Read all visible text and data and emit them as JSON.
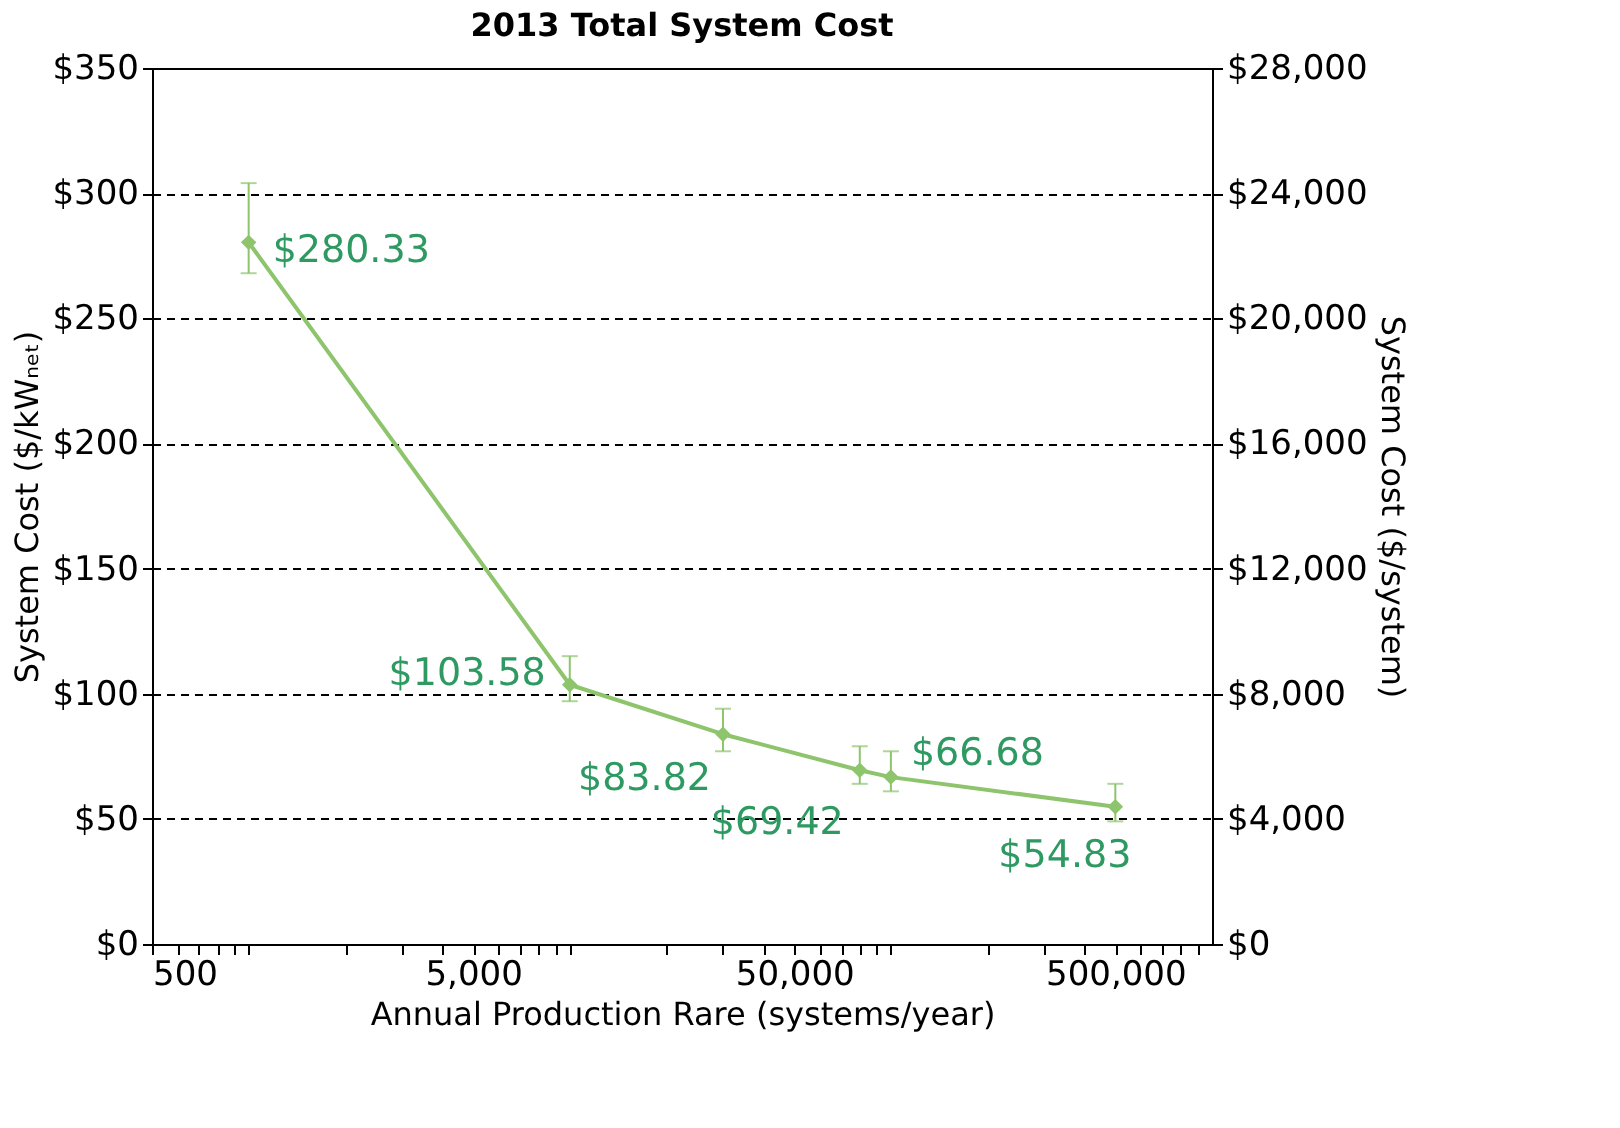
{
  "chart_data": {
    "type": "line",
    "title": "2013 Total System Cost",
    "xlabel": "Annual Production Rare (systems/year)",
    "ylabel": "System Cost ($/kWₙₑₜ)",
    "y2label": "System Cost ($/system)",
    "x": [
      1000,
      10000,
      30000,
      80000,
      100000,
      500000
    ],
    "series": [
      {
        "color": "#8dc46c",
        "values": [
          280.33,
          103.58,
          83.82,
          69.42,
          66.68,
          54.83
        ],
        "errors": [
          [
            268,
            304
          ],
          [
            97,
            115
          ],
          [
            77,
            94
          ],
          [
            64,
            79
          ],
          [
            61,
            77
          ],
          [
            49,
            64
          ]
        ],
        "value_labels": [
          "$280.33",
          "$103.58",
          "$83.82",
          "$69.42",
          "$66.68",
          "$54.83"
        ]
      }
    ],
    "log": "x",
    "marker": "diamond",
    "line_style": "solid",
    "grid": "y",
    "xlim": [
      500,
      1000000
    ],
    "xticks": [
      {
        "value": 500,
        "label": "500"
      },
      {
        "value": 600,
        "label": null
      },
      {
        "value": 700,
        "label": null
      },
      {
        "value": 800,
        "label": null
      },
      {
        "value": 900,
        "label": null
      },
      {
        "value": 1000,
        "label": null
      },
      {
        "value": 2000,
        "label": null
      },
      {
        "value": 3000,
        "label": null
      },
      {
        "value": 4000,
        "label": null
      },
      {
        "value": 5000,
        "label": "5,000"
      },
      {
        "value": 6000,
        "label": null
      },
      {
        "value": 7000,
        "label": null
      },
      {
        "value": 8000,
        "label": null
      },
      {
        "value": 9000,
        "label": null
      },
      {
        "value": 10000,
        "label": null
      },
      {
        "value": 20000,
        "label": null
      },
      {
        "value": 30000,
        "label": null
      },
      {
        "value": 40000,
        "label": null
      },
      {
        "value": 50000,
        "label": "50,000"
      },
      {
        "value": 60000,
        "label": null
      },
      {
        "value": 70000,
        "label": null
      },
      {
        "value": 80000,
        "label": null
      },
      {
        "value": 90000,
        "label": null
      },
      {
        "value": 100000,
        "label": null
      },
      {
        "value": 200000,
        "label": null
      },
      {
        "value": 300000,
        "label": null
      },
      {
        "value": 400000,
        "label": null
      },
      {
        "value": 500000,
        "label": "500,000"
      },
      {
        "value": 600000,
        "label": null
      },
      {
        "value": 700000,
        "label": null
      },
      {
        "value": 800000,
        "label": null
      },
      {
        "value": 900000,
        "label": null
      }
    ],
    "ylim": [
      0,
      350
    ],
    "yticks": [
      {
        "value": 0,
        "label": "$0"
      },
      {
        "value": 50,
        "label": "$50"
      },
      {
        "value": 100,
        "label": "$100"
      },
      {
        "value": 150,
        "label": "$150"
      },
      {
        "value": 200,
        "label": "$200"
      },
      {
        "value": 250,
        "label": "$250"
      },
      {
        "value": 300,
        "label": "$300"
      },
      {
        "value": 350,
        "label": "$350"
      }
    ],
    "y2lim": [
      0,
      28000
    ],
    "y2ticks": [
      {
        "value": 0,
        "label": "$0"
      },
      {
        "value": 4000,
        "label": "$4,000"
      },
      {
        "value": 8000,
        "label": "$8,000"
      },
      {
        "value": 12000,
        "label": "$12,000"
      },
      {
        "value": 16000,
        "label": "$16,000"
      },
      {
        "value": 20000,
        "label": "$20,000"
      },
      {
        "value": 24000,
        "label": "$24,000"
      },
      {
        "value": 28000,
        "label": "$28,000"
      }
    ]
  }
}
